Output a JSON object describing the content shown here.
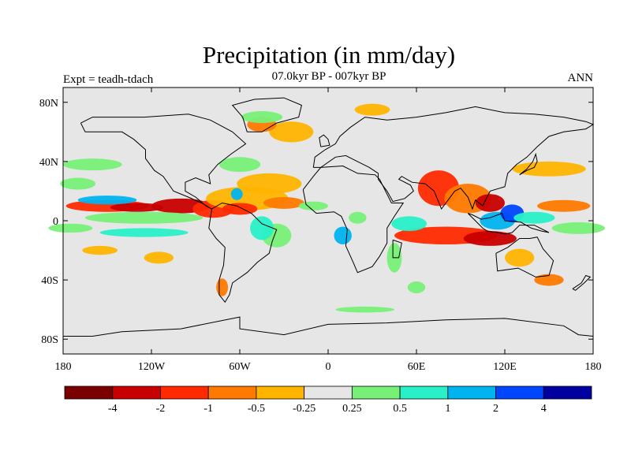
{
  "title": "Precipitation (in mm/day)",
  "subtitle": "07.0kyr BP - 007kyr BP",
  "experiment_label": "Expt = teadh-tdach",
  "season_label": "ANN",
  "lat_ticks": [
    {
      "lat": 80,
      "label": "80N"
    },
    {
      "lat": 40,
      "label": "40N"
    },
    {
      "lat": 0,
      "label": "0"
    },
    {
      "lat": -40,
      "label": "40S"
    },
    {
      "lat": -80,
      "label": "80S"
    }
  ],
  "lon_ticks": [
    {
      "lon": -180,
      "label": "180"
    },
    {
      "lon": -120,
      "label": "120W"
    },
    {
      "lon": -60,
      "label": "60W"
    },
    {
      "lon": 0,
      "label": "0"
    },
    {
      "lon": 60,
      "label": "60E"
    },
    {
      "lon": 120,
      "label": "120E"
    },
    {
      "lon": 180,
      "label": "180"
    }
  ],
  "colorbar": {
    "colors": [
      "#7a0000",
      "#c80000",
      "#ff2a00",
      "#ff7a00",
      "#ffb400",
      "#e6e6e6",
      "#78f078",
      "#28f0c8",
      "#00b4f0",
      "#0046ff",
      "#0000a0"
    ],
    "labels": [
      "-4",
      "-2",
      "-1",
      "-0.5",
      "-0.25",
      "0.25",
      "0.5",
      "1",
      "2",
      "4"
    ]
  },
  "colors": {
    "ocean_background": "#e6e6e6",
    "coastline": "#000000"
  },
  "patches": [
    {
      "lon": -150,
      "lat": 10,
      "rx": 28,
      "ry": 4,
      "level": 2
    },
    {
      "lon": -130,
      "lat": 9,
      "rx": 18,
      "ry": 3,
      "level": 1
    },
    {
      "lon": -100,
      "lat": 10,
      "rx": 20,
      "ry": 5,
      "level": 1
    },
    {
      "lon": -78,
      "lat": 8,
      "rx": 14,
      "ry": 6,
      "level": 2
    },
    {
      "lon": -55,
      "lat": 15,
      "rx": 28,
      "ry": 8,
      "level": 4
    },
    {
      "lon": -40,
      "lat": 25,
      "rx": 22,
      "ry": 7,
      "level": 4
    },
    {
      "lon": -60,
      "lat": 8,
      "rx": 12,
      "ry": 4,
      "level": 2
    },
    {
      "lon": -30,
      "lat": 12,
      "rx": 14,
      "ry": 4,
      "level": 3
    },
    {
      "lon": -25,
      "lat": 60,
      "rx": 15,
      "ry": 7,
      "level": 4
    },
    {
      "lon": -45,
      "lat": 65,
      "rx": 10,
      "ry": 5,
      "level": 3
    },
    {
      "lon": 30,
      "lat": 75,
      "rx": 12,
      "ry": 4,
      "level": 4
    },
    {
      "lon": 75,
      "lat": 22,
      "rx": 14,
      "ry": 12,
      "level": 2
    },
    {
      "lon": 95,
      "lat": 15,
      "rx": 16,
      "ry": 10,
      "level": 3
    },
    {
      "lon": 110,
      "lat": 12,
      "rx": 10,
      "ry": 6,
      "level": 1
    },
    {
      "lon": 80,
      "lat": -10,
      "rx": 35,
      "ry": 6,
      "level": 2
    },
    {
      "lon": 110,
      "lat": -12,
      "rx": 18,
      "ry": 5,
      "level": 1
    },
    {
      "lon": 130,
      "lat": -25,
      "rx": 10,
      "ry": 6,
      "level": 4
    },
    {
      "lon": 150,
      "lat": -40,
      "rx": 10,
      "ry": 4,
      "level": 3
    },
    {
      "lon": 160,
      "lat": 10,
      "rx": 18,
      "ry": 4,
      "level": 3
    },
    {
      "lon": 150,
      "lat": 35,
      "rx": 25,
      "ry": 5,
      "level": 4
    },
    {
      "lon": -155,
      "lat": -20,
      "rx": 12,
      "ry": 3,
      "level": 4
    },
    {
      "lon": -115,
      "lat": -25,
      "rx": 10,
      "ry": 4,
      "level": 4
    },
    {
      "lon": -72,
      "lat": -45,
      "rx": 4,
      "ry": 6,
      "level": 3
    },
    {
      "lon": -10,
      "lat": 10,
      "rx": 10,
      "ry": 3,
      "level": 6
    },
    {
      "lon": 20,
      "lat": 2,
      "rx": 6,
      "ry": 4,
      "level": 6
    },
    {
      "lon": 55,
      "lat": -2,
      "rx": 12,
      "ry": 5,
      "level": 7
    },
    {
      "lon": -160,
      "lat": 38,
      "rx": 20,
      "ry": 4,
      "level": 6
    },
    {
      "lon": -170,
      "lat": 25,
      "rx": 12,
      "ry": 4,
      "level": 6
    },
    {
      "lon": -125,
      "lat": 2,
      "rx": 40,
      "ry": 4,
      "level": 6
    },
    {
      "lon": -175,
      "lat": -5,
      "rx": 15,
      "ry": 3,
      "level": 6
    },
    {
      "lon": -125,
      "lat": -8,
      "rx": 30,
      "ry": 3,
      "level": 7
    },
    {
      "lon": -150,
      "lat": 14,
      "rx": 20,
      "ry": 3,
      "level": 8
    },
    {
      "lon": -60,
      "lat": 38,
      "rx": 14,
      "ry": 5,
      "level": 6
    },
    {
      "lon": -45,
      "lat": 70,
      "rx": 14,
      "ry": 4,
      "level": 6
    },
    {
      "lon": -35,
      "lat": -10,
      "rx": 10,
      "ry": 8,
      "level": 6
    },
    {
      "lon": -45,
      "lat": -5,
      "rx": 8,
      "ry": 8,
      "level": 7
    },
    {
      "lon": 10,
      "lat": -10,
      "rx": 6,
      "ry": 6,
      "level": 8
    },
    {
      "lon": 45,
      "lat": -25,
      "rx": 5,
      "ry": 10,
      "level": 6
    },
    {
      "lon": 115,
      "lat": 0,
      "rx": 12,
      "ry": 6,
      "level": 8
    },
    {
      "lon": 125,
      "lat": 5,
      "rx": 8,
      "ry": 6,
      "level": 9
    },
    {
      "lon": 140,
      "lat": 2,
      "rx": 14,
      "ry": 4,
      "level": 7
    },
    {
      "lon": 170,
      "lat": -5,
      "rx": 18,
      "ry": 4,
      "level": 6
    },
    {
      "lon": -62,
      "lat": 18,
      "rx": 4,
      "ry": 4,
      "level": 8
    },
    {
      "lon": 25,
      "lat": -60,
      "rx": 20,
      "ry": 2,
      "level": 6
    },
    {
      "lon": 60,
      "lat": -45,
      "rx": 6,
      "ry": 4,
      "level": 6
    }
  ]
}
